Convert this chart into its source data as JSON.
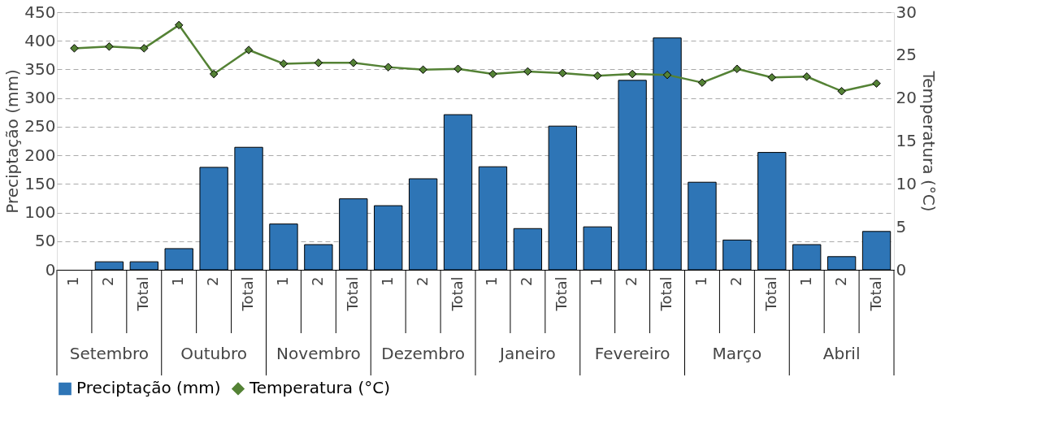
{
  "chart_data": {
    "type": "bar",
    "categories": [
      "1",
      "2",
      "Total",
      "1",
      "2",
      "Total",
      "1",
      "2",
      "Total",
      "1",
      "2",
      "Total",
      "1",
      "2",
      "Total",
      "1",
      "2",
      "Total",
      "1",
      "2",
      "Total",
      "1",
      "2",
      "Total"
    ],
    "annotations": [
      "Setembro",
      "Outubro",
      "Novembro",
      "Dezembro",
      "Janeiro",
      "Fevereiro",
      "Março",
      "Abril"
    ],
    "ylabel": "Preciptação (mm)",
    "y2label": "Temperatura (°C)",
    "ylim": [
      0,
      450
    ],
    "yticks": [
      0,
      50,
      100,
      150,
      200,
      250,
      300,
      350,
      400,
      450
    ],
    "y2lim": [
      0,
      30
    ],
    "y2ticks": [
      0,
      5,
      10,
      15,
      20,
      25,
      30
    ],
    "grid": "y",
    "legend": "bottom",
    "series": [
      {
        "name": "Preciptação (mm)",
        "color": "#2e75b6",
        "values": [
          null,
          14,
          14,
          37,
          179,
          214,
          80,
          44,
          124,
          112,
          159,
          271,
          180,
          72,
          251,
          75,
          331,
          405,
          153,
          52,
          205,
          44,
          23,
          67
        ]
      },
      {
        "name": "Temperatura (°C)",
        "type": "line",
        "axis": "y2",
        "marker": "diamond",
        "color": "#548235",
        "values": [
          25.8,
          26.0,
          25.8,
          28.5,
          22.8,
          25.6,
          24.0,
          24.1,
          24.1,
          23.6,
          23.3,
          23.4,
          22.8,
          23.1,
          22.9,
          22.6,
          22.8,
          22.7,
          21.8,
          23.4,
          22.4,
          22.5,
          20.8,
          21.7
        ]
      }
    ]
  }
}
